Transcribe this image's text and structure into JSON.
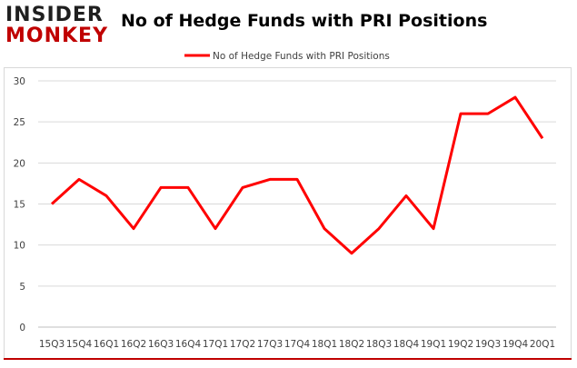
{
  "logo": {
    "line1": "INSIDER",
    "line2": "MONKEY"
  },
  "colors": {
    "series": "#ff0000",
    "logo_accent": "#c00000",
    "grid": "#d9d9d9",
    "text": "#404040"
  },
  "chart_data": {
    "type": "line",
    "title": "No of Hedge Funds with PRI Positions",
    "xlabel": "",
    "ylabel": "",
    "x": [
      "15Q3",
      "15Q4",
      "16Q1",
      "16Q2",
      "16Q3",
      "16Q4",
      "17Q1",
      "17Q2",
      "17Q3",
      "17Q4",
      "18Q1",
      "18Q2",
      "18Q3",
      "18Q4",
      "19Q1",
      "19Q2",
      "19Q3",
      "19Q4",
      "20Q1"
    ],
    "series": [
      {
        "name": "No of Hedge Funds with PRI Positions",
        "values": [
          15,
          18,
          16,
          12,
          17,
          17,
          12,
          17,
          18,
          18,
          12,
          9,
          12,
          16,
          12,
          26,
          26,
          28,
          23
        ]
      }
    ],
    "ylim": [
      0,
      30
    ],
    "yticks": [
      0,
      5,
      10,
      15,
      20,
      25,
      30
    ],
    "grid": true,
    "legend": "top-center"
  }
}
